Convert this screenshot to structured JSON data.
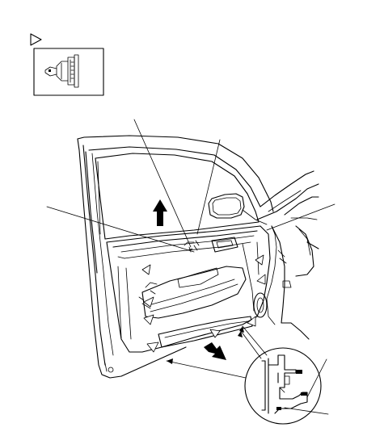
{
  "figure": {
    "icons": {
      "legend_marker": "triangle-outline-icon",
      "clip_symbol": "trim-clip-icon",
      "lift_arrow": "arrow-up-icon",
      "pull_arrow": "arrow-down-right-icon"
    },
    "parts": [
      "inset-box",
      "door-frame",
      "door-glass",
      "side-mirror",
      "door-panel",
      "inner-handle",
      "armrest",
      "speaker",
      "map-pocket",
      "vehicle-body",
      "clip-detail-circle"
    ],
    "callouts": [
      "leader-line-top-left",
      "leader-line-top-right",
      "leader-line-left",
      "leader-line-right-upper",
      "leader-line-right-lower-1",
      "leader-line-right-lower-2",
      "leader-line-bottom"
    ],
    "colors": {
      "line": "#000000",
      "background": "#ffffff"
    }
  }
}
